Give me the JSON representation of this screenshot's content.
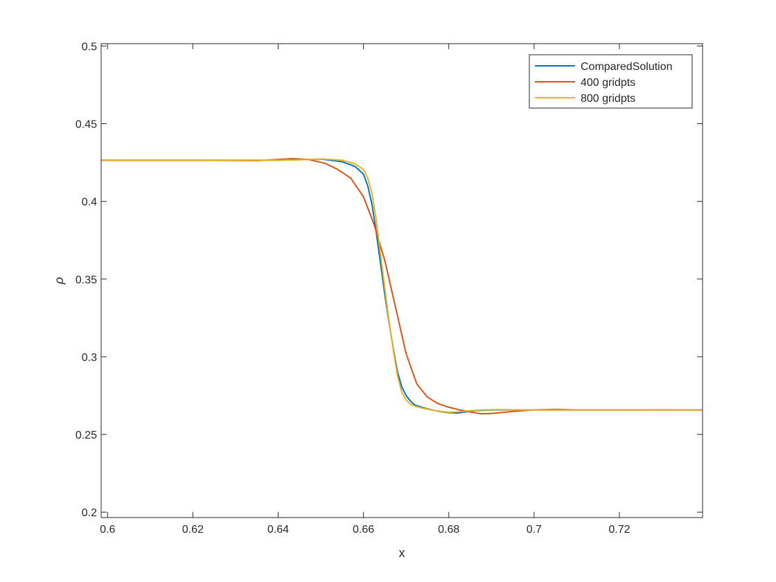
{
  "chart_data": {
    "type": "line",
    "title": "",
    "xlabel": "x",
    "ylabel": "ρ",
    "xlim": [
      0.5985,
      0.7395
    ],
    "ylim": [
      0.1965,
      0.5015
    ],
    "xticks": [
      0.6,
      0.62,
      0.64,
      0.66,
      0.68,
      0.7,
      0.72
    ],
    "xtick_labels": [
      "0.6",
      "0.62",
      "0.64",
      "0.66",
      "0.68",
      "0.7",
      "0.72"
    ],
    "yticks": [
      0.2,
      0.25,
      0.3,
      0.35,
      0.4,
      0.45,
      0.5
    ],
    "ytick_labels": [
      "0.2",
      "0.25",
      "0.3",
      "0.35",
      "0.4",
      "0.45",
      "0.5"
    ],
    "grid": false,
    "legend_position": "top-right",
    "series": [
      {
        "name": "ComparedSolution",
        "color": "#0072BD",
        "x": [
          0.5985,
          0.62,
          0.64,
          0.645,
          0.65,
          0.655,
          0.658,
          0.66,
          0.661,
          0.662,
          0.663,
          0.664,
          0.665,
          0.666,
          0.667,
          0.668,
          0.669,
          0.67,
          0.671,
          0.672,
          0.674,
          0.676,
          0.678,
          0.68,
          0.682,
          0.684,
          0.686,
          0.69,
          0.695,
          0.7,
          0.71,
          0.7395
        ],
        "y": [
          0.4265,
          0.4265,
          0.4265,
          0.4268,
          0.4272,
          0.4255,
          0.4225,
          0.4175,
          0.41,
          0.398,
          0.38,
          0.36,
          0.34,
          0.322,
          0.305,
          0.29,
          0.2805,
          0.275,
          0.2715,
          0.269,
          0.2672,
          0.2658,
          0.2647,
          0.264,
          0.2637,
          0.2645,
          0.2653,
          0.2658,
          0.2658,
          0.2657,
          0.2657,
          0.2657
        ]
      },
      {
        "name": "400 gridpts",
        "color": "#D95319",
        "x": [
          0.5985,
          0.62,
          0.635,
          0.64,
          0.6435,
          0.647,
          0.651,
          0.654,
          0.657,
          0.66,
          0.6625,
          0.665,
          0.6675,
          0.67,
          0.6725,
          0.675,
          0.6775,
          0.68,
          0.6825,
          0.685,
          0.6875,
          0.69,
          0.695,
          0.7,
          0.705,
          0.71,
          0.7395
        ],
        "y": [
          0.4265,
          0.4265,
          0.4262,
          0.427,
          0.4275,
          0.427,
          0.4245,
          0.4205,
          0.415,
          0.403,
          0.385,
          0.362,
          0.332,
          0.302,
          0.2825,
          0.274,
          0.2698,
          0.2675,
          0.2658,
          0.2645,
          0.2633,
          0.2635,
          0.2648,
          0.2658,
          0.2662,
          0.2658,
          0.2657
        ]
      },
      {
        "name": "800 gridpts",
        "color": "#EDB120",
        "x": [
          0.5985,
          0.62,
          0.64,
          0.645,
          0.65,
          0.655,
          0.658,
          0.66,
          0.661,
          0.662,
          0.663,
          0.664,
          0.665,
          0.666,
          0.667,
          0.668,
          0.669,
          0.67,
          0.671,
          0.672,
          0.674,
          0.676,
          0.678,
          0.68,
          0.682,
          0.685,
          0.688,
          0.691,
          0.695,
          0.7,
          0.71,
          0.7395
        ],
        "y": [
          0.4265,
          0.4265,
          0.4265,
          0.4267,
          0.4273,
          0.4265,
          0.4242,
          0.4205,
          0.415,
          0.405,
          0.388,
          0.366,
          0.344,
          0.323,
          0.304,
          0.2875,
          0.277,
          0.2722,
          0.2695,
          0.2683,
          0.2668,
          0.2657,
          0.2649,
          0.2643,
          0.2645,
          0.2653,
          0.2658,
          0.266,
          0.2659,
          0.2657,
          0.2657,
          0.2657
        ]
      }
    ]
  }
}
